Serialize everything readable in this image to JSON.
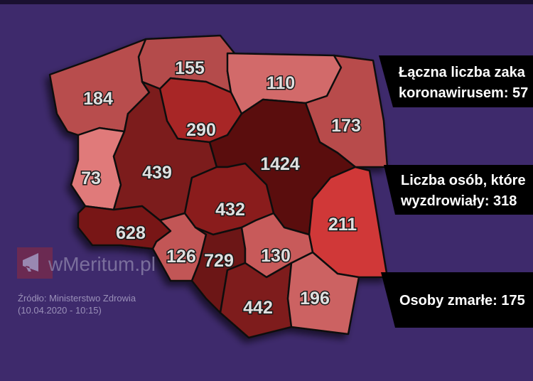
{
  "map": {
    "regions": [
      {
        "id": "pomorskie",
        "value": "155",
        "color": "#b44b4b"
      },
      {
        "id": "zachodniopomorskie",
        "value": "184",
        "color": "#b84e4e"
      },
      {
        "id": "warminsko-mazurskie",
        "value": "110",
        "color": "#d26a6a"
      },
      {
        "id": "podlaskie",
        "value": "173",
        "color": "#b84c4c"
      },
      {
        "id": "kujawsko-pomorskie",
        "value": "290",
        "color": "#a82626"
      },
      {
        "id": "lubuskie",
        "value": "73",
        "color": "#e07a7a"
      },
      {
        "id": "wielkopolskie",
        "value": "439",
        "color": "#7c1a1a"
      },
      {
        "id": "mazowieckie",
        "value": "1424",
        "color": "#5a0d0d"
      },
      {
        "id": "lodzkie",
        "value": "432",
        "color": "#8a1f1f"
      },
      {
        "id": "lubelskie",
        "value": "211",
        "color": "#d03838"
      },
      {
        "id": "dolnoslaskie",
        "value": "628",
        "color": "#781414"
      },
      {
        "id": "opolskie",
        "value": "126",
        "color": "#c25656"
      },
      {
        "id": "slaskie",
        "value": "729",
        "color": "#6c1313"
      },
      {
        "id": "swietokrzyskie",
        "value": "130",
        "color": "#c85a5a"
      },
      {
        "id": "malopolskie",
        "value": "442",
        "color": "#7e1a1a"
      },
      {
        "id": "podkarpackie",
        "value": "196",
        "color": "#cc6262"
      }
    ]
  },
  "stats": {
    "total_line1": "Łączna liczba zaka",
    "total_line2": "koronawirusem: 57",
    "recovered_line1": "Liczba osób, które",
    "recovered_line2": "wyzdrowiały: 318",
    "deaths": "Osoby zmarłe: 175"
  },
  "watermark": {
    "text": "wMeritum.pl",
    "icon": "megaphone-icon"
  },
  "source": {
    "line1": "Źródło: Ministerstwo Zdrowia",
    "line2": "(10.04.2020 - 10:15)"
  },
  "colors": {
    "background": "#3e2a6c",
    "box": "#000000",
    "label": "#e0e0e0"
  }
}
